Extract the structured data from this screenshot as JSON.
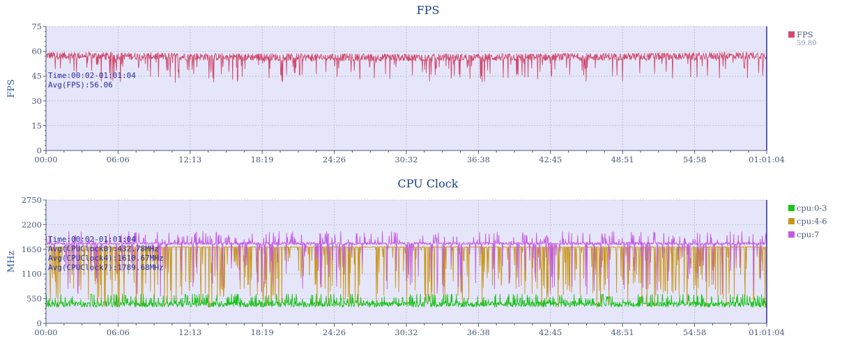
{
  "chart_data": [
    {
      "type": "line",
      "title": "FPS",
      "ylabel": "FPS",
      "xlabel": "",
      "x_tick_labels": [
        "00:00",
        "06:06",
        "12:13",
        "18:19",
        "24:26",
        "30:32",
        "36:38",
        "42:45",
        "48:51",
        "54:58",
        "01:01:04"
      ],
      "xlim_seconds": [
        0,
        3664
      ],
      "ylim": [
        0,
        75
      ],
      "y_ticks": [
        0,
        15,
        30,
        45,
        60,
        75
      ],
      "grid": true,
      "legend_position": "right",
      "series": [
        {
          "name": "FPS",
          "legend_value": "59.80",
          "color": "#d04a6e",
          "mean": 56.06,
          "min": 42,
          "max": 61
        }
      ],
      "annotations": [
        "Time:00:02-01:01:04",
        "Avg(FPS):56.06"
      ]
    },
    {
      "type": "line",
      "title": "CPU Clock",
      "ylabel": "MHz",
      "xlabel": "",
      "x_tick_labels": [
        "00:00",
        "06:06",
        "12:13",
        "18:19",
        "24:26",
        "30:32",
        "36:38",
        "42:45",
        "48:51",
        "54:58",
        "01:01:04"
      ],
      "xlim_seconds": [
        0,
        3664
      ],
      "ylim": [
        0,
        2750
      ],
      "y_ticks": [
        0,
        550,
        1100,
        1650,
        2200,
        2750
      ],
      "grid": true,
      "legend_position": "right",
      "series": [
        {
          "name": "cpu:0-3",
          "color": "#19c219",
          "mean": 432.78,
          "low": 300,
          "high": 650
        },
        {
          "name": "cpu:4-6",
          "color": "#c8961a",
          "mean": 1610.67,
          "low": 350,
          "high": 1700
        },
        {
          "name": "cpu:7",
          "color": "#c45ae0",
          "mean": 1789.68,
          "low": 400,
          "high": 2000
        }
      ],
      "annotations": [
        "Time:00:02-01:01:04",
        "Avg(CPUClock0):432.78MHz",
        "Avg(CPUClock4):1610.67MHz",
        "Avg(CPUClock7):1789.68MHz"
      ]
    }
  ]
}
